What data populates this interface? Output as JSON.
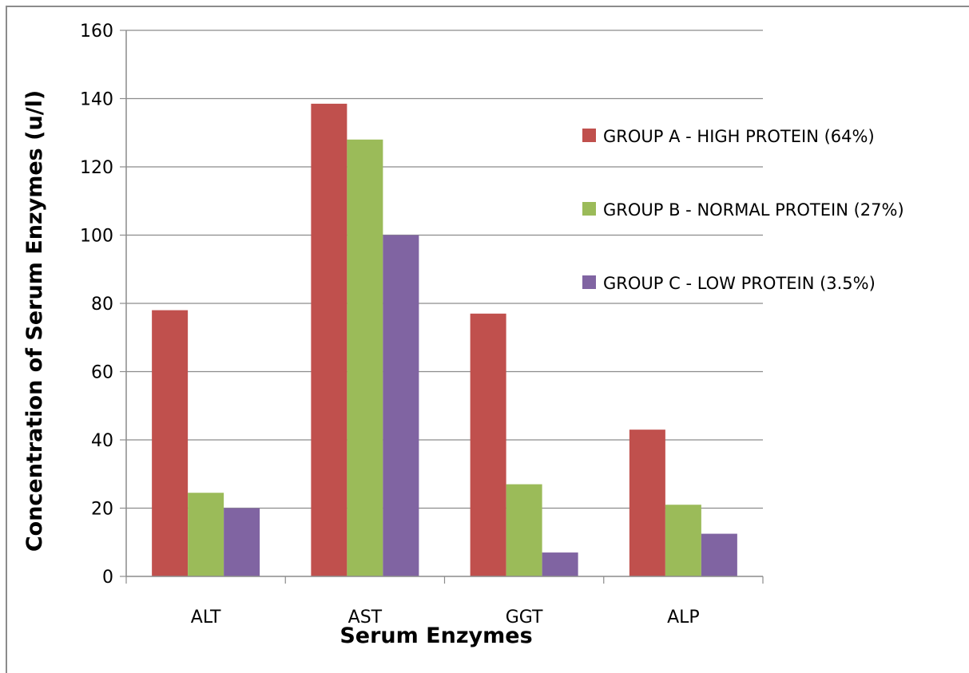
{
  "chart_data": {
    "type": "bar",
    "title": "",
    "xlabel": "Serum Enzymes",
    "ylabel": "Concentration of Serum Enzymes (u/l)",
    "categories": [
      "ALT",
      "AST",
      "GGT",
      "ALP"
    ],
    "ylim": [
      0,
      160
    ],
    "yticks": [
      0,
      20,
      40,
      60,
      80,
      100,
      120,
      140,
      160
    ],
    "grid": true,
    "legend_position": "right",
    "series": [
      {
        "name": "GROUP A - HIGH PROTEIN (64%)",
        "color": "#c0504d",
        "values": [
          78,
          138.5,
          77,
          43
        ]
      },
      {
        "name": "GROUP B - NORMAL PROTEIN (27%)",
        "color": "#9bbb59",
        "values": [
          24.5,
          128,
          27,
          21
        ]
      },
      {
        "name": "GROUP C - LOW PROTEIN (3.5%)",
        "color": "#8064a2",
        "values": [
          20,
          100,
          7,
          12.5
        ]
      }
    ]
  }
}
